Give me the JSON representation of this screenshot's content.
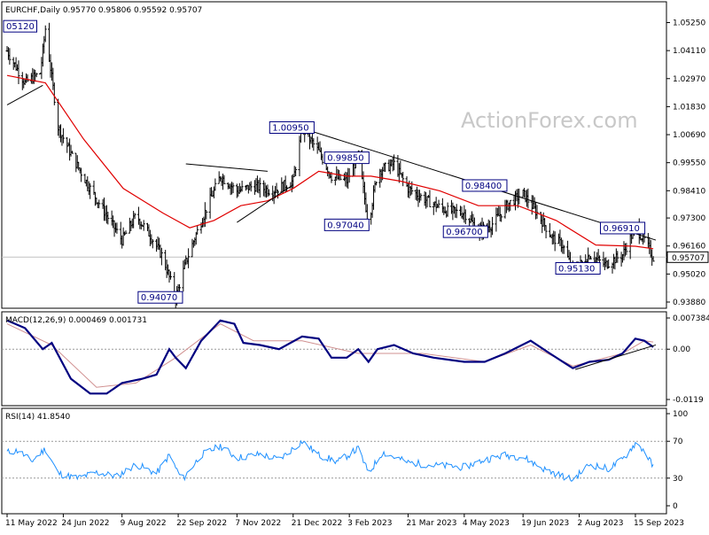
{
  "chart_data": [
    {
      "type": "candlestick",
      "title": "EURCHF,Daily",
      "ohlc_readout": "0.95770 0.95806 0.95592 0.95707",
      "watermark": "ActionForex.com",
      "ylim": [
        0.9388,
        1.0552
      ],
      "y_ticks": [
        "1.05250",
        "1.04110",
        "1.02970",
        "1.01830",
        "1.00690",
        "0.99550",
        "0.98410",
        "0.97300",
        "0.96160",
        "0.95020",
        "0.93880"
      ],
      "current_price": "0.95707",
      "x_ticks": [
        "11 May 2022",
        "24 Jun 2022",
        "9 Aug 2022",
        "22 Sep 2022",
        "7 Nov 2022",
        "21 Dec 2022",
        "3 Feb 2023",
        "21 Mar 2023",
        "4 May 2023",
        "19 Jun 2023",
        "2 Aug 2023",
        "15 Sep 2023"
      ],
      "price_path": [
        [
          "2022-05-11",
          1.041
        ],
        [
          "2022-05-25",
          1.028
        ],
        [
          "2022-06-06",
          1.032
        ],
        [
          "2022-06-10",
          1.05
        ],
        [
          "2022-06-20",
          1.01
        ],
        [
          "2022-07-01",
          0.998
        ],
        [
          "2022-07-15",
          0.985
        ],
        [
          "2022-07-28",
          0.974
        ],
        [
          "2022-08-09",
          0.964
        ],
        [
          "2022-08-20",
          0.974
        ],
        [
          "2022-08-31",
          0.966
        ],
        [
          "2022-09-10",
          0.957
        ],
        [
          "2022-09-20",
          0.9407
        ],
        [
          "2022-09-28",
          0.955
        ],
        [
          "2022-10-05",
          0.965
        ],
        [
          "2022-10-15",
          0.978
        ],
        [
          "2022-10-25",
          0.99
        ],
        [
          "2022-11-07",
          0.984
        ],
        [
          "2022-11-20",
          0.986
        ],
        [
          "2022-12-05",
          0.984
        ],
        [
          "2022-12-21",
          0.988
        ],
        [
          "2022-12-28",
          1.0095
        ],
        [
          "2023-01-10",
          1.0
        ],
        [
          "2023-01-20",
          0.99
        ],
        [
          "2023-02-01",
          0.988
        ],
        [
          "2023-02-10",
          0.9985
        ],
        [
          "2023-02-18",
          0.9704
        ],
        [
          "2023-02-25",
          0.992
        ],
        [
          "2023-03-10",
          0.995
        ],
        [
          "2023-03-21",
          0.985
        ],
        [
          "2023-04-05",
          0.98
        ],
        [
          "2023-04-20",
          0.976
        ],
        [
          "2023-05-04",
          0.975
        ],
        [
          "2023-05-15",
          0.968
        ],
        [
          "2023-05-25",
          0.97
        ],
        [
          "2023-06-08",
          0.979
        ],
        [
          "2023-06-19",
          0.983
        ],
        [
          "2023-06-30",
          0.975
        ],
        [
          "2023-07-12",
          0.965
        ],
        [
          "2023-07-20",
          0.962
        ],
        [
          "2023-07-28",
          0.9513
        ],
        [
          "2023-08-10",
          0.958
        ],
        [
          "2023-08-22",
          0.954
        ],
        [
          "2023-09-05",
          0.958
        ],
        [
          "2023-09-15",
          0.9691
        ],
        [
          "2023-09-22",
          0.964
        ],
        [
          "2023-09-29",
          0.957
        ]
      ],
      "ma_path": [
        [
          "2022-05-11",
          1.031
        ],
        [
          "2022-06-10",
          1.028
        ],
        [
          "2022-07-10",
          1.005
        ],
        [
          "2022-08-10",
          0.985
        ],
        [
          "2022-09-10",
          0.975
        ],
        [
          "2022-10-01",
          0.969
        ],
        [
          "2022-10-20",
          0.972
        ],
        [
          "2022-11-10",
          0.978
        ],
        [
          "2022-12-01",
          0.98
        ],
        [
          "2022-12-21",
          0.985
        ],
        [
          "2023-01-10",
          0.992
        ],
        [
          "2023-02-01",
          0.99
        ],
        [
          "2023-02-20",
          0.99
        ],
        [
          "2023-03-15",
          0.988
        ],
        [
          "2023-04-15",
          0.984
        ],
        [
          "2023-05-15",
          0.978
        ],
        [
          "2023-06-15",
          0.978
        ],
        [
          "2023-07-15",
          0.972
        ],
        [
          "2023-08-15",
          0.962
        ],
        [
          "2023-09-15",
          0.9615
        ],
        [
          "2023-09-29",
          0.9605
        ]
      ],
      "trendlines": [
        {
          "from": [
            "2022-05-11",
            1.019
          ],
          "to": [
            "2022-06-08",
            1.027
          ]
        },
        {
          "from": [
            "2022-09-28",
            0.995
          ],
          "to": [
            "2022-12-01",
            0.992
          ]
        },
        {
          "from": [
            "2022-11-07",
            0.9712
          ],
          "to": [
            "2022-12-21",
            0.9865
          ]
        },
        {
          "from": [
            "2022-12-28",
            1.0095
          ],
          "to": [
            "2023-10-01",
            0.964
          ]
        }
      ],
      "annotations": [
        {
          "text": "05120",
          "x": "2022-05-20",
          "y": 1.051
        },
        {
          "text": "0.94070",
          "x": "2022-09-08",
          "y": 0.9407
        },
        {
          "text": "1.00950",
          "x": "2022-12-20",
          "y": 1.0098
        },
        {
          "text": "0.99850",
          "x": "2023-02-01",
          "y": 0.9975
        },
        {
          "text": "0.97040",
          "x": "2023-02-01",
          "y": 0.9702
        },
        {
          "text": "0.98400",
          "x": "2023-05-20",
          "y": 0.9862
        },
        {
          "text": "0.96700",
          "x": "2023-05-05",
          "y": 0.9674
        },
        {
          "text": "0.96910",
          "x": "2023-09-05",
          "y": 0.9689
        },
        {
          "text": "0.95130",
          "x": "2023-08-01",
          "y": 0.9525
        }
      ]
    },
    {
      "type": "line",
      "title": "MACD(12,26,9) 0.000469 0.001731",
      "ylim": [
        -0.0119,
        0.007384
      ],
      "y_ticks": [
        "0.007384",
        "0.00",
        "-0.0119"
      ],
      "macd_path": [
        [
          "2022-05-11",
          0.0068
        ],
        [
          "2022-05-25",
          0.005
        ],
        [
          "2022-06-08",
          0.0
        ],
        [
          "2022-06-15",
          0.0015
        ],
        [
          "2022-06-30",
          -0.007
        ],
        [
          "2022-07-15",
          -0.0105
        ],
        [
          "2022-07-28",
          -0.0105
        ],
        [
          "2022-08-09",
          -0.008
        ],
        [
          "2022-08-25",
          -0.007
        ],
        [
          "2022-09-05",
          -0.006
        ],
        [
          "2022-09-15",
          0.0
        ],
        [
          "2022-09-20",
          -0.002
        ],
        [
          "2022-09-28",
          -0.0045
        ],
        [
          "2022-10-10",
          0.002
        ],
        [
          "2022-10-25",
          0.0068
        ],
        [
          "2022-11-05",
          0.006
        ],
        [
          "2022-11-12",
          0.0015
        ],
        [
          "2022-11-25",
          0.001
        ],
        [
          "2022-12-10",
          0.0
        ],
        [
          "2022-12-28",
          0.003
        ],
        [
          "2023-01-10",
          0.0025
        ],
        [
          "2023-01-20",
          -0.002
        ],
        [
          "2023-02-01",
          -0.002
        ],
        [
          "2023-02-10",
          0.0
        ],
        [
          "2023-02-18",
          -0.003
        ],
        [
          "2023-02-25",
          0.0
        ],
        [
          "2023-03-10",
          0.001
        ],
        [
          "2023-03-25",
          -0.001
        ],
        [
          "2023-04-10",
          -0.002
        ],
        [
          "2023-05-04",
          -0.003
        ],
        [
          "2023-05-20",
          -0.003
        ],
        [
          "2023-06-05",
          -0.001
        ],
        [
          "2023-06-25",
          0.002
        ],
        [
          "2023-07-10",
          -0.001
        ],
        [
          "2023-07-28",
          -0.0045
        ],
        [
          "2023-08-10",
          -0.003
        ],
        [
          "2023-08-25",
          -0.0025
        ],
        [
          "2023-09-05",
          -0.001
        ],
        [
          "2023-09-15",
          0.0025
        ],
        [
          "2023-09-22",
          0.002
        ],
        [
          "2023-09-29",
          0.0005
        ]
      ],
      "signal_path": [
        [
          "2022-05-11",
          0.006
        ],
        [
          "2022-06-15",
          0.001
        ],
        [
          "2022-07-20",
          -0.009
        ],
        [
          "2022-08-20",
          -0.008
        ],
        [
          "2022-09-20",
          -0.002
        ],
        [
          "2022-10-25",
          0.006
        ],
        [
          "2022-11-20",
          0.002
        ],
        [
          "2022-12-28",
          0.002
        ],
        [
          "2023-02-10",
          -0.001
        ],
        [
          "2023-04-01",
          -0.001
        ],
        [
          "2023-05-20",
          -0.003
        ],
        [
          "2023-06-25",
          0.001
        ],
        [
          "2023-07-28",
          -0.004
        ],
        [
          "2023-09-05",
          -0.001
        ],
        [
          "2023-09-22",
          0.002
        ],
        [
          "2023-09-29",
          0.0017
        ]
      ],
      "trendline": {
        "from": [
          "2023-07-30",
          -0.0048
        ],
        "to": [
          "2023-10-01",
          0.001
        ]
      }
    },
    {
      "type": "line",
      "title": "RSI(14) 41.8540",
      "ylim": [
        0,
        100
      ],
      "y_ticks": [
        "100",
        "70",
        "30",
        "0"
      ],
      "rsi_path": [
        [
          "2022-05-11",
          58
        ],
        [
          "2022-05-20",
          60
        ],
        [
          "2022-05-30",
          48
        ],
        [
          "2022-06-10",
          62
        ],
        [
          "2022-06-20",
          35
        ],
        [
          "2022-07-05",
          30
        ],
        [
          "2022-07-20",
          36
        ],
        [
          "2022-08-05",
          32
        ],
        [
          "2022-08-20",
          45
        ],
        [
          "2022-09-05",
          35
        ],
        [
          "2022-09-15",
          55
        ],
        [
          "2022-09-25",
          28
        ],
        [
          "2022-10-10",
          55
        ],
        [
          "2022-10-25",
          65
        ],
        [
          "2022-11-07",
          52
        ],
        [
          "2022-11-25",
          56
        ],
        [
          "2022-12-10",
          50
        ],
        [
          "2022-12-28",
          70
        ],
        [
          "2023-01-10",
          55
        ],
        [
          "2023-01-25",
          48
        ],
        [
          "2023-02-10",
          62
        ],
        [
          "2023-02-18",
          35
        ],
        [
          "2023-03-01",
          58
        ],
        [
          "2023-03-21",
          47
        ],
        [
          "2023-04-10",
          44
        ],
        [
          "2023-05-04",
          42
        ],
        [
          "2023-05-20",
          50
        ],
        [
          "2023-06-05",
          55
        ],
        [
          "2023-06-19",
          53
        ],
        [
          "2023-07-05",
          40
        ],
        [
          "2023-07-28",
          28
        ],
        [
          "2023-08-10",
          45
        ],
        [
          "2023-08-25",
          40
        ],
        [
          "2023-09-05",
          50
        ],
        [
          "2023-09-15",
          68
        ],
        [
          "2023-09-22",
          60
        ],
        [
          "2023-09-29",
          42
        ]
      ]
    }
  ]
}
